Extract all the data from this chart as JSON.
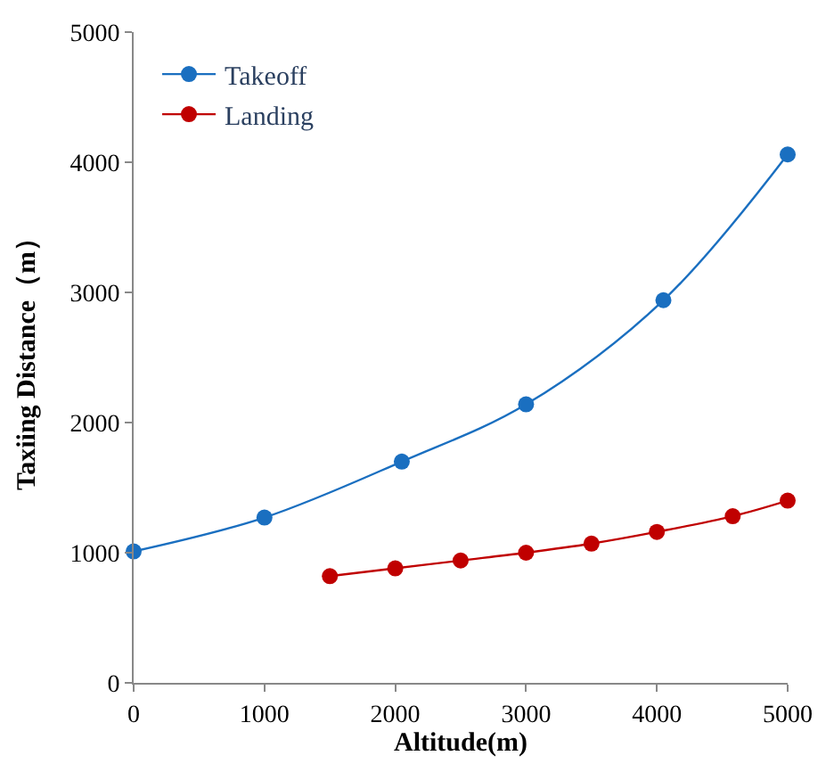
{
  "chart_data": {
    "type": "line",
    "xlabel": "Altitude(m)",
    "ylabel": "Taxiing Distance（m）",
    "xlim": [
      0,
      5000
    ],
    "xticks": [
      0,
      1000,
      2000,
      3000,
      4000,
      5000
    ],
    "ylim": [
      0,
      5000
    ],
    "yticks": [
      0,
      1000,
      2000,
      3000,
      4000,
      5000
    ],
    "legend": "top left",
    "marker": "circle",
    "line_style": "solid",
    "series": [
      {
        "name": "Takeoff",
        "color": "#1a6fc0",
        "x": [
          0,
          1000,
          2050,
          3000,
          4050,
          5000
        ],
        "values": [
          1010,
          1270,
          1700,
          2140,
          2940,
          4060
        ]
      },
      {
        "name": "Landing",
        "color": "#c00000",
        "x": [
          1500,
          2000,
          2500,
          3000,
          3500,
          4000,
          4580,
          5000
        ],
        "values": [
          820,
          880,
          940,
          1000,
          1070,
          1160,
          1280,
          1400
        ]
      }
    ]
  }
}
